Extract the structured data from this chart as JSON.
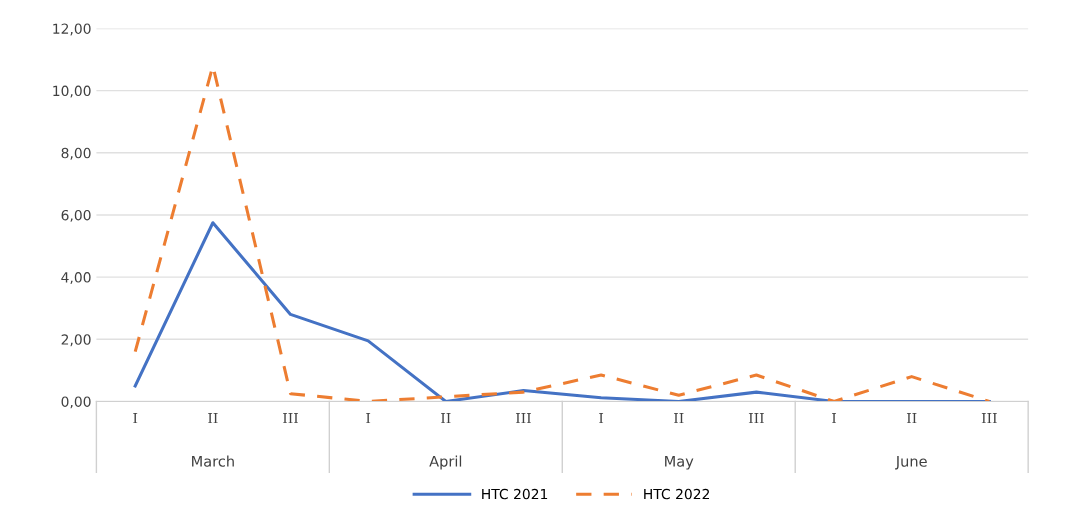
{
  "chart_data": {
    "type": "line",
    "categories": [
      "I",
      "II",
      "III",
      "I",
      "II",
      "III",
      "I",
      "II",
      "III",
      "I",
      "II",
      "III"
    ],
    "annotations": [
      "March",
      "April",
      "May",
      "June"
    ],
    "series": [
      {
        "name": "HTC 2021",
        "color": "#4472c4",
        "line_style": "solid",
        "values": [
          0.5,
          5.75,
          2.8,
          1.95,
          0.0,
          0.35,
          0.12,
          0.0,
          0.3,
          0.0,
          0.0,
          0.0
        ]
      },
      {
        "name": "HTC 2022",
        "color": "#ed7d31",
        "line_style": "dashed",
        "values": [
          1.6,
          10.8,
          0.25,
          0.0,
          0.15,
          0.3,
          0.85,
          0.2,
          0.85,
          0.0,
          0.8,
          0.0
        ]
      }
    ],
    "ylim": [
      0,
      12
    ],
    "yticks": [
      {
        "value": 0,
        "label": "0,00"
      },
      {
        "value": 2,
        "label": "2,00"
      },
      {
        "value": 4,
        "label": "4,00"
      },
      {
        "value": 6,
        "label": "6,00"
      },
      {
        "value": 8,
        "label": "8,00"
      },
      {
        "value": 10,
        "label": "10,00"
      },
      {
        "value": 12,
        "label": "12,00"
      }
    ],
    "grid": "y",
    "legend": "bottom",
    "marker": "none"
  }
}
